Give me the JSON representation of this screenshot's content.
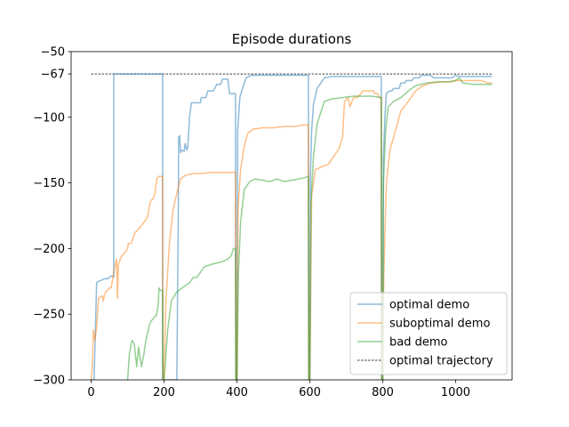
{
  "chart_data": {
    "type": "line",
    "title": "Episode durations",
    "xlabel": "",
    "ylabel": "",
    "xlim": [
      -55,
      1155
    ],
    "ylim": [
      -300,
      -50
    ],
    "xticks": [
      0,
      200,
      400,
      600,
      800,
      1000
    ],
    "yticks": [
      -300,
      -250,
      -200,
      -150,
      -100,
      -67,
      -50
    ],
    "grid": false,
    "legend_position": "lower-right",
    "reference_line": {
      "name": "optimal trajectory",
      "y": -67,
      "x_range": [
        0,
        1100
      ],
      "color": "#000000",
      "style": "dashed"
    },
    "series": [
      {
        "name": "optimal demo",
        "color": "#1f77b4",
        "points": [
          [
            0,
            -300
          ],
          [
            8,
            -300
          ],
          [
            12,
            -258
          ],
          [
            15,
            -226
          ],
          [
            20,
            -225
          ],
          [
            30,
            -224
          ],
          [
            35,
            -223
          ],
          [
            45,
            -223
          ],
          [
            55,
            -221
          ],
          [
            60,
            -221
          ],
          [
            62,
            -222
          ],
          [
            62,
            -67
          ],
          [
            100,
            -67
          ],
          [
            150,
            -67
          ],
          [
            196,
            -67
          ],
          [
            196,
            -300
          ],
          [
            235,
            -300
          ],
          [
            239,
            -175
          ],
          [
            240,
            -115
          ],
          [
            243,
            -114
          ],
          [
            245,
            -127
          ],
          [
            250,
            -125
          ],
          [
            255,
            -126
          ],
          [
            258,
            -120
          ],
          [
            262,
            -125
          ],
          [
            265,
            -123
          ],
          [
            270,
            -100
          ],
          [
            275,
            -89
          ],
          [
            290,
            -89
          ],
          [
            300,
            -89
          ],
          [
            302,
            -85
          ],
          [
            315,
            -85
          ],
          [
            320,
            -80
          ],
          [
            335,
            -80
          ],
          [
            345,
            -75
          ],
          [
            355,
            -75
          ],
          [
            360,
            -71
          ],
          [
            375,
            -71
          ],
          [
            380,
            -82
          ],
          [
            396,
            -82
          ],
          [
            397,
            -300
          ],
          [
            400,
            -300
          ],
          [
            402,
            -110
          ],
          [
            408,
            -85
          ],
          [
            415,
            -78
          ],
          [
            425,
            -70
          ],
          [
            440,
            -68
          ],
          [
            470,
            -68
          ],
          [
            500,
            -68
          ],
          [
            550,
            -68
          ],
          [
            596,
            -68
          ],
          [
            597,
            -300
          ],
          [
            600,
            -300
          ],
          [
            602,
            -140
          ],
          [
            605,
            -110
          ],
          [
            610,
            -90
          ],
          [
            620,
            -78
          ],
          [
            640,
            -70
          ],
          [
            660,
            -69
          ],
          [
            700,
            -69
          ],
          [
            750,
            -69
          ],
          [
            796,
            -69
          ],
          [
            797,
            -300
          ],
          [
            800,
            -300
          ],
          [
            802,
            -130
          ],
          [
            806,
            -100
          ],
          [
            810,
            -82
          ],
          [
            818,
            -80
          ],
          [
            825,
            -80
          ],
          [
            830,
            -78
          ],
          [
            845,
            -78
          ],
          [
            850,
            -74
          ],
          [
            860,
            -74
          ],
          [
            865,
            -72
          ],
          [
            880,
            -72
          ],
          [
            885,
            -70
          ],
          [
            900,
            -70
          ],
          [
            905,
            -68
          ],
          [
            930,
            -68
          ],
          [
            940,
            -70
          ],
          [
            990,
            -70
          ],
          [
            1000,
            -68
          ],
          [
            1010,
            -69
          ],
          [
            1050,
            -69
          ],
          [
            1100,
            -69
          ]
        ]
      },
      {
        "name": "suboptimal demo",
        "color": "#ff7f0e",
        "points": [
          [
            0,
            -300
          ],
          [
            3,
            -290
          ],
          [
            6,
            -262
          ],
          [
            10,
            -270
          ],
          [
            15,
            -260
          ],
          [
            20,
            -238
          ],
          [
            25,
            -237
          ],
          [
            30,
            -236
          ],
          [
            33,
            -240
          ],
          [
            36,
            -236
          ],
          [
            40,
            -233
          ],
          [
            45,
            -232
          ],
          [
            50,
            -230
          ],
          [
            55,
            -230
          ],
          [
            58,
            -225
          ],
          [
            62,
            -218
          ],
          [
            65,
            -215
          ],
          [
            68,
            -210
          ],
          [
            70,
            -208
          ],
          [
            72,
            -238
          ],
          [
            75,
            -212
          ],
          [
            80,
            -208
          ],
          [
            85,
            -205
          ],
          [
            90,
            -204
          ],
          [
            95,
            -202
          ],
          [
            100,
            -200
          ],
          [
            102,
            -196
          ],
          [
            110,
            -196
          ],
          [
            115,
            -192
          ],
          [
            120,
            -188
          ],
          [
            130,
            -185
          ],
          [
            140,
            -182
          ],
          [
            150,
            -178
          ],
          [
            155,
            -175
          ],
          [
            160,
            -168
          ],
          [
            162,
            -165
          ],
          [
            165,
            -163
          ],
          [
            170,
            -162
          ],
          [
            175,
            -158
          ],
          [
            180,
            -147
          ],
          [
            185,
            -145
          ],
          [
            196,
            -145
          ],
          [
            197,
            -300
          ],
          [
            200,
            -300
          ],
          [
            205,
            -240
          ],
          [
            215,
            -195
          ],
          [
            225,
            -170
          ],
          [
            235,
            -158
          ],
          [
            245,
            -147
          ],
          [
            260,
            -144
          ],
          [
            280,
            -143
          ],
          [
            300,
            -143
          ],
          [
            330,
            -142
          ],
          [
            360,
            -142
          ],
          [
            396,
            -142
          ],
          [
            397,
            -300
          ],
          [
            400,
            -300
          ],
          [
            403,
            -170
          ],
          [
            410,
            -140
          ],
          [
            420,
            -122
          ],
          [
            430,
            -112
          ],
          [
            445,
            -109
          ],
          [
            470,
            -108
          ],
          [
            500,
            -108
          ],
          [
            530,
            -107
          ],
          [
            560,
            -107
          ],
          [
            580,
            -106
          ],
          [
            596,
            -106
          ],
          [
            597,
            -300
          ],
          [
            600,
            -300
          ],
          [
            605,
            -160
          ],
          [
            615,
            -140
          ],
          [
            630,
            -138
          ],
          [
            650,
            -136
          ],
          [
            665,
            -130
          ],
          [
            680,
            -124
          ],
          [
            690,
            -115
          ],
          [
            695,
            -88
          ],
          [
            705,
            -85
          ],
          [
            710,
            -92
          ],
          [
            720,
            -85
          ],
          [
            730,
            -85
          ],
          [
            740,
            -82
          ],
          [
            745,
            -80
          ],
          [
            760,
            -80
          ],
          [
            775,
            -80
          ],
          [
            778,
            -82
          ],
          [
            786,
            -82
          ],
          [
            790,
            -85
          ],
          [
            796,
            -85
          ],
          [
            797,
            -300
          ],
          [
            800,
            -300
          ],
          [
            803,
            -220
          ],
          [
            810,
            -150
          ],
          [
            820,
            -125
          ],
          [
            835,
            -110
          ],
          [
            850,
            -95
          ],
          [
            870,
            -88
          ],
          [
            890,
            -80
          ],
          [
            910,
            -76
          ],
          [
            930,
            -74
          ],
          [
            960,
            -73
          ],
          [
            990,
            -73
          ],
          [
            1000,
            -72
          ],
          [
            1040,
            -72
          ],
          [
            1070,
            -72
          ],
          [
            1080,
            -73
          ],
          [
            1090,
            -74
          ],
          [
            1100,
            -74
          ]
        ]
      },
      {
        "name": "bad demo",
        "color": "#2ca02c",
        "points": [
          [
            100,
            -300
          ],
          [
            105,
            -280
          ],
          [
            112,
            -270
          ],
          [
            118,
            -272
          ],
          [
            125,
            -290
          ],
          [
            130,
            -275
          ],
          [
            138,
            -290
          ],
          [
            145,
            -280
          ],
          [
            150,
            -270
          ],
          [
            160,
            -258
          ],
          [
            165,
            -255
          ],
          [
            175,
            -252
          ],
          [
            180,
            -250
          ],
          [
            184,
            -243
          ],
          [
            186,
            -230
          ],
          [
            190,
            -232
          ],
          [
            196,
            -232
          ],
          [
            197,
            -300
          ],
          [
            200,
            -300
          ],
          [
            210,
            -262
          ],
          [
            220,
            -240
          ],
          [
            235,
            -233
          ],
          [
            250,
            -230
          ],
          [
            260,
            -228
          ],
          [
            270,
            -226
          ],
          [
            280,
            -222
          ],
          [
            290,
            -222
          ],
          [
            295,
            -220
          ],
          [
            300,
            -218
          ],
          [
            305,
            -216
          ],
          [
            310,
            -214
          ],
          [
            320,
            -213
          ],
          [
            330,
            -212
          ],
          [
            345,
            -211
          ],
          [
            360,
            -210
          ],
          [
            375,
            -208
          ],
          [
            385,
            -205
          ],
          [
            390,
            -200
          ],
          [
            396,
            -200
          ],
          [
            397,
            -300
          ],
          [
            400,
            -300
          ],
          [
            404,
            -220
          ],
          [
            410,
            -180
          ],
          [
            420,
            -155
          ],
          [
            435,
            -149
          ],
          [
            450,
            -147
          ],
          [
            470,
            -148
          ],
          [
            490,
            -149
          ],
          [
            510,
            -147
          ],
          [
            530,
            -149
          ],
          [
            550,
            -148
          ],
          [
            570,
            -147
          ],
          [
            585,
            -146
          ],
          [
            596,
            -145
          ],
          [
            597,
            -300
          ],
          [
            600,
            -300
          ],
          [
            603,
            -165
          ],
          [
            610,
            -130
          ],
          [
            620,
            -105
          ],
          [
            640,
            -88
          ],
          [
            660,
            -86
          ],
          [
            690,
            -85
          ],
          [
            720,
            -84
          ],
          [
            750,
            -84
          ],
          [
            770,
            -84
          ],
          [
            796,
            -85
          ],
          [
            797,
            -300
          ],
          [
            800,
            -300
          ],
          [
            802,
            -150
          ],
          [
            808,
            -110
          ],
          [
            815,
            -92
          ],
          [
            830,
            -88
          ],
          [
            850,
            -85
          ],
          [
            870,
            -80
          ],
          [
            890,
            -76
          ],
          [
            920,
            -74
          ],
          [
            950,
            -73
          ],
          [
            980,
            -73
          ],
          [
            1000,
            -72
          ],
          [
            1010,
            -70
          ],
          [
            1020,
            -74
          ],
          [
            1050,
            -75
          ],
          [
            1080,
            -75
          ],
          [
            1100,
            -75
          ]
        ]
      }
    ]
  }
}
